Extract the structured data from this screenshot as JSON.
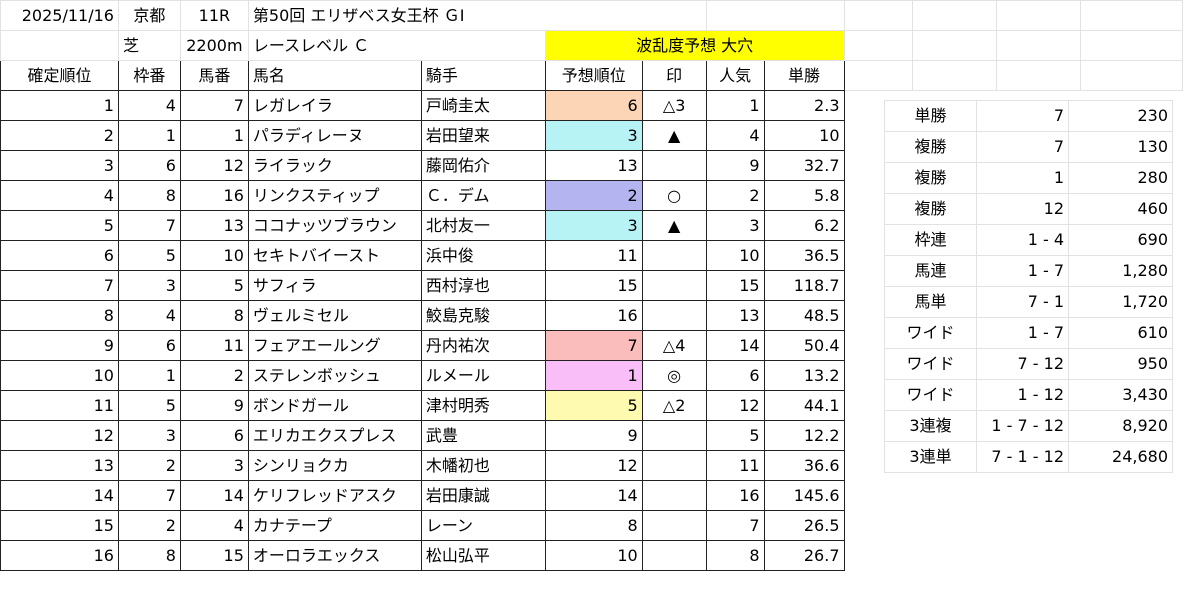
{
  "race": {
    "date": "2025/11/16",
    "venue": "京都",
    "race_no": "11R",
    "title": "第50回 エリザベス女王杯 ＧⅠ",
    "surface": "芝",
    "distance": "2200m",
    "level": "レースレベル Ｃ",
    "prediction_label": "波乱度予想 大穴"
  },
  "colors": {
    "prediction_header": "#ffff00",
    "orange": "#fbd5b5",
    "cyan": "#b7f2f5",
    "lavender": "#b4b4f0",
    "pink": "#fbbcbc",
    "magenta": "#f9bdf7",
    "light_yellow": "#fefaaf"
  },
  "headers": [
    "確定順位",
    "枠番",
    "馬番",
    "馬名",
    "騎手",
    "予想順位",
    "印",
    "人気",
    "単勝"
  ],
  "rows": [
    {
      "finish": "1",
      "waku": "4",
      "umaban": "7",
      "horse": "レガレイラ",
      "jockey": "戸崎圭太",
      "pred": "6",
      "mark": "△3",
      "pop": "1",
      "odds": "2.3",
      "pred_color": "orange"
    },
    {
      "finish": "2",
      "waku": "1",
      "umaban": "1",
      "horse": "パラディレーヌ",
      "jockey": "岩田望来",
      "pred": "3",
      "mark": "▲",
      "pop": "4",
      "odds": "10",
      "pred_color": "cyan"
    },
    {
      "finish": "3",
      "waku": "6",
      "umaban": "12",
      "horse": "ライラック",
      "jockey": "藤岡佑介",
      "pred": "13",
      "mark": "",
      "pop": "9",
      "odds": "32.7",
      "pred_color": ""
    },
    {
      "finish": "4",
      "waku": "8",
      "umaban": "16",
      "horse": "リンクスティップ",
      "jockey": "Ｃ．デム",
      "pred": "2",
      "mark": "○",
      "pop": "2",
      "odds": "5.8",
      "pred_color": "lavender"
    },
    {
      "finish": "5",
      "waku": "7",
      "umaban": "13",
      "horse": "ココナッツブラウン",
      "jockey": "北村友一",
      "pred": "3",
      "mark": "▲",
      "pop": "3",
      "odds": "6.2",
      "pred_color": "cyan"
    },
    {
      "finish": "6",
      "waku": "5",
      "umaban": "10",
      "horse": "セキトバイースト",
      "jockey": "浜中俊",
      "pred": "11",
      "mark": "",
      "pop": "10",
      "odds": "36.5",
      "pred_color": ""
    },
    {
      "finish": "7",
      "waku": "3",
      "umaban": "5",
      "horse": "サフィラ",
      "jockey": "西村淳也",
      "pred": "15",
      "mark": "",
      "pop": "15",
      "odds": "118.7",
      "pred_color": ""
    },
    {
      "finish": "8",
      "waku": "4",
      "umaban": "8",
      "horse": "ヴェルミセル",
      "jockey": "鮫島克駿",
      "pred": "16",
      "mark": "",
      "pop": "13",
      "odds": "48.5",
      "pred_color": ""
    },
    {
      "finish": "9",
      "waku": "6",
      "umaban": "11",
      "horse": "フェアエールング",
      "jockey": "丹内祐次",
      "pred": "7",
      "mark": "△4",
      "pop": "14",
      "odds": "50.4",
      "pred_color": "pink"
    },
    {
      "finish": "10",
      "waku": "1",
      "umaban": "2",
      "horse": "ステレンボッシュ",
      "jockey": "ルメール",
      "pred": "1",
      "mark": "◎",
      "pop": "6",
      "odds": "13.2",
      "pred_color": "magenta"
    },
    {
      "finish": "11",
      "waku": "5",
      "umaban": "9",
      "horse": "ボンドガール",
      "jockey": "津村明秀",
      "pred": "5",
      "mark": "△2",
      "pop": "12",
      "odds": "44.1",
      "pred_color": "light_yellow"
    },
    {
      "finish": "12",
      "waku": "3",
      "umaban": "6",
      "horse": "エリカエクスプレス",
      "jockey": "武豊",
      "pred": "9",
      "mark": "",
      "pop": "5",
      "odds": "12.2",
      "pred_color": ""
    },
    {
      "finish": "13",
      "waku": "2",
      "umaban": "3",
      "horse": "シンリョクカ",
      "jockey": "木幡初也",
      "pred": "12",
      "mark": "",
      "pop": "11",
      "odds": "36.6",
      "pred_color": ""
    },
    {
      "finish": "14",
      "waku": "7",
      "umaban": "14",
      "horse": "ケリフレッドアスク",
      "jockey": "岩田康誠",
      "pred": "14",
      "mark": "",
      "pop": "16",
      "odds": "145.6",
      "pred_color": ""
    },
    {
      "finish": "15",
      "waku": "2",
      "umaban": "4",
      "horse": "カナテープ",
      "jockey": "レーン",
      "pred": "8",
      "mark": "",
      "pop": "7",
      "odds": "26.5",
      "pred_color": ""
    },
    {
      "finish": "16",
      "waku": "8",
      "umaban": "15",
      "horse": "オーロラエックス",
      "jockey": "松山弘平",
      "pred": "10",
      "mark": "",
      "pop": "8",
      "odds": "26.7",
      "pred_color": ""
    }
  ],
  "payouts": [
    {
      "type": "単勝",
      "combo": "7",
      "amount": "230"
    },
    {
      "type": "複勝",
      "combo": "7",
      "amount": "130"
    },
    {
      "type": "複勝",
      "combo": "1",
      "amount": "280"
    },
    {
      "type": "複勝",
      "combo": "12",
      "amount": "460"
    },
    {
      "type": "枠連",
      "combo": "1 - 4",
      "amount": "690"
    },
    {
      "type": "馬連",
      "combo": "1 - 7",
      "amount": "1,280"
    },
    {
      "type": "馬単",
      "combo": "7 - 1",
      "amount": "1,720"
    },
    {
      "type": "ワイド",
      "combo": "1 - 7",
      "amount": "610"
    },
    {
      "type": "ワイド",
      "combo": "7 - 12",
      "amount": "950"
    },
    {
      "type": "ワイド",
      "combo": "1 - 12",
      "amount": "3,430"
    },
    {
      "type": "3連複",
      "combo": "1 - 7 - 12",
      "amount": "8,920"
    },
    {
      "type": "3連単",
      "combo": "7 - 1 - 12",
      "amount": "24,680"
    }
  ]
}
